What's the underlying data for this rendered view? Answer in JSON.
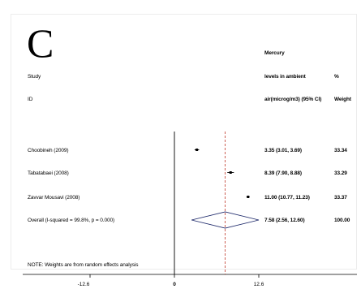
{
  "panel_letter": "C",
  "header": {
    "study": "Study",
    "id": "ID",
    "effect_line1": "Mercury",
    "effect_line2": "levels in ambient",
    "effect_line3": "air(microg/m3) (95% CI)",
    "weight_line1": "%",
    "weight_line2": "Weight"
  },
  "chart_data": {
    "type": "forest",
    "null_line": 0,
    "overall_line": 7.58,
    "x_ticks": [
      {
        "value": -12.6,
        "label": "-12.6"
      },
      {
        "value": 0,
        "label": "0"
      },
      {
        "value": 12.6,
        "label": "12.6"
      }
    ],
    "studies": [
      {
        "label": "Choobineh (2009)",
        "estimate": 3.35,
        "lower": 3.01,
        "upper": 3.69,
        "ci_text": "3.35 (3.01, 3.69)",
        "weight": "33.34"
      },
      {
        "label": "Tabatabaei (2008)",
        "estimate": 8.39,
        "lower": 7.9,
        "upper": 8.88,
        "ci_text": "8.39 (7.90, 8.88)",
        "weight": "33.29"
      },
      {
        "label": "Zavvar Mousavi (2008)",
        "estimate": 11.0,
        "lower": 10.77,
        "upper": 11.23,
        "ci_text": "11.00 (10.77, 11.23)",
        "weight": "33.37"
      }
    ],
    "overall": {
      "label": "Overall  (I-squared = 99.8%, p = 0.000)",
      "estimate": 7.58,
      "lower": 2.56,
      "upper": 12.6,
      "ci_text": "7.58 (2.56, 12.60)",
      "weight": "100.00"
    },
    "note": "NOTE: Weights are from random effects analysis",
    "colors": {
      "overall_line": "#c0392b",
      "diamond": "#1f2a6b",
      "axis": "#000000"
    }
  }
}
